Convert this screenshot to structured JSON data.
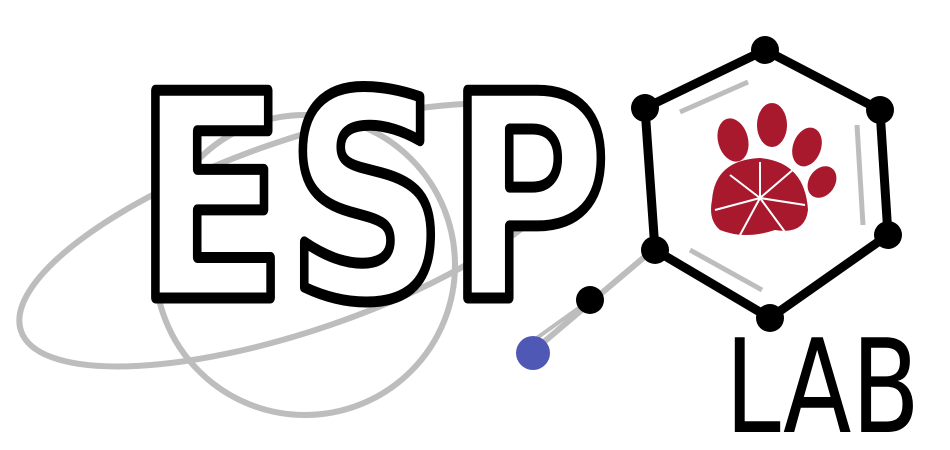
{
  "logo": {
    "name": "ESP",
    "suffix": "LAB"
  }
}
